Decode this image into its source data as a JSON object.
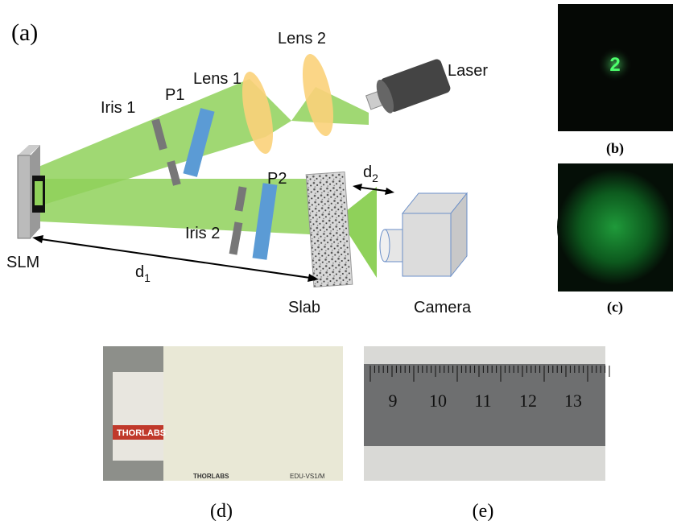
{
  "panel_a": {
    "tag": "(a)",
    "labels": {
      "lens1": "Lens 1",
      "lens2": "Lens 2",
      "laser": "Laser",
      "iris1": "Iris 1",
      "p1": "P1",
      "p2": "P2",
      "iris2": "Iris 2",
      "slm": "SLM",
      "slab": "Slab",
      "camera": "Camera"
    },
    "d1": {
      "base": "d",
      "sub": "1"
    },
    "d2": {
      "base": "d",
      "sub": "2"
    }
  },
  "panel_b": {
    "tag": "(b)",
    "digit": "2"
  },
  "panel_c": {
    "tag": "(c)"
  },
  "panel_d": {
    "tag": "(d)",
    "brand": "THORLABS",
    "model": "EDU-VS1/M"
  },
  "panel_e": {
    "tag": "(e)",
    "ruler": [
      "9",
      "10",
      "11",
      "12",
      "13"
    ]
  }
}
